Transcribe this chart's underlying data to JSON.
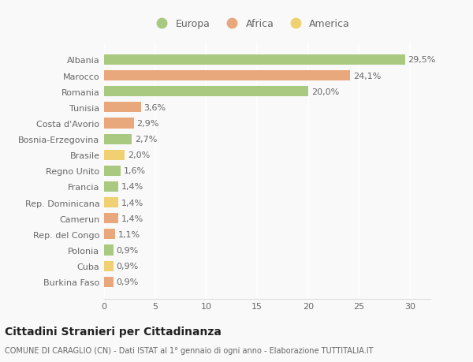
{
  "categories": [
    "Albania",
    "Marocco",
    "Romania",
    "Tunisia",
    "Costa d'Avorio",
    "Bosnia-Erzegovina",
    "Brasile",
    "Regno Unito",
    "Francia",
    "Rep. Dominicana",
    "Camerun",
    "Rep. del Congo",
    "Polonia",
    "Cuba",
    "Burkina Faso"
  ],
  "values": [
    29.5,
    24.1,
    20.0,
    3.6,
    2.9,
    2.7,
    2.0,
    1.6,
    1.4,
    1.4,
    1.4,
    1.1,
    0.9,
    0.9,
    0.9
  ],
  "labels": [
    "29,5%",
    "24,1%",
    "20,0%",
    "3,6%",
    "2,9%",
    "2,7%",
    "2,0%",
    "1,6%",
    "1,4%",
    "1,4%",
    "1,4%",
    "1,1%",
    "0,9%",
    "0,9%",
    "0,9%"
  ],
  "colors": [
    "#a8c97f",
    "#e8a87c",
    "#a8c97f",
    "#e8a87c",
    "#e8a87c",
    "#a8c97f",
    "#f0d070",
    "#a8c97f",
    "#a8c97f",
    "#f0d070",
    "#e8a87c",
    "#e8a87c",
    "#a8c97f",
    "#f0d070",
    "#e8a87c"
  ],
  "legend_labels": [
    "Europa",
    "Africa",
    "America"
  ],
  "legend_colors": [
    "#a8c97f",
    "#e8a87c",
    "#f0d070"
  ],
  "title": "Cittadini Stranieri per Cittadinanza",
  "subtitle": "COMUNE DI CARAGLIO (CN) - Dati ISTAT al 1° gennaio di ogni anno - Elaborazione TUTTITALIA.IT",
  "xlim": [
    0,
    32
  ],
  "xticks": [
    0,
    5,
    10,
    15,
    20,
    25,
    30
  ],
  "background_color": "#f9f9f9",
  "bar_height": 0.65,
  "label_fontsize": 8,
  "ytick_fontsize": 8,
  "xtick_fontsize": 8,
  "title_fontsize": 10,
  "subtitle_fontsize": 7
}
